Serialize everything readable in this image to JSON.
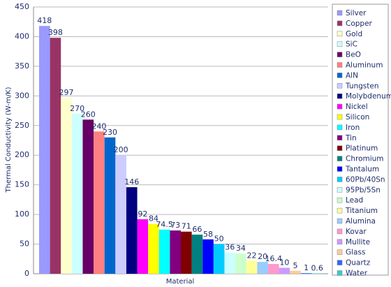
{
  "chart_data": {
    "type": "bar",
    "y_label": "Thermal Conductivity (W-m/K)",
    "x_label": "Material",
    "categories": [
      null
    ],
    "ylim": [
      0,
      450
    ],
    "yticks": [
      0,
      50,
      100,
      150,
      200,
      250,
      300,
      350,
      400,
      450
    ],
    "grid": true,
    "legend": "right",
    "series": [
      {
        "name": "Silver",
        "color": "#9999ff",
        "values": [
          418
        ]
      },
      {
        "name": "Copper",
        "color": "#993366",
        "values": [
          398
        ]
      },
      {
        "name": "Gold",
        "color": "#ffffcc",
        "values": [
          297
        ]
      },
      {
        "name": "SiC",
        "color": "#ccffff",
        "values": [
          270
        ]
      },
      {
        "name": "BeO",
        "color": "#660066",
        "values": [
          260
        ]
      },
      {
        "name": "Aluminum",
        "color": "#ff8080",
        "values": [
          240
        ]
      },
      {
        "name": "AlN",
        "color": "#0066cc",
        "values": [
          230
        ]
      },
      {
        "name": "Tungsten",
        "color": "#ccccff",
        "values": [
          200
        ]
      },
      {
        "name": "Molybdenum",
        "color": "#000080",
        "values": [
          146
        ]
      },
      {
        "name": "Nickel",
        "color": "#ff00ff",
        "values": [
          92
        ]
      },
      {
        "name": "Silicon",
        "color": "#ffff00",
        "values": [
          84
        ]
      },
      {
        "name": "Iron",
        "color": "#00ffff",
        "values": [
          74.5
        ]
      },
      {
        "name": "Tin",
        "color": "#800080",
        "values": [
          73
        ]
      },
      {
        "name": "Platinum",
        "color": "#800000",
        "values": [
          71
        ]
      },
      {
        "name": "Chromium",
        "color": "#008080",
        "values": [
          66
        ]
      },
      {
        "name": "Tantalum",
        "color": "#0000ff",
        "values": [
          58
        ]
      },
      {
        "name": "60Pb/40Sn",
        "color": "#00ccff",
        "values": [
          50
        ]
      },
      {
        "name": "95Pb/5Sn",
        "color": "#ccffff",
        "values": [
          36
        ]
      },
      {
        "name": "Lead",
        "color": "#ccffcc",
        "values": [
          34
        ]
      },
      {
        "name": "Titanium",
        "color": "#ffff99",
        "values": [
          22
        ]
      },
      {
        "name": "Alumina",
        "color": "#99ccff",
        "values": [
          20
        ]
      },
      {
        "name": "Kovar",
        "color": "#ff99cc",
        "values": [
          16.4
        ]
      },
      {
        "name": "Mullite",
        "color": "#cc99ff",
        "values": [
          10
        ]
      },
      {
        "name": "Glass",
        "color": "#ffcc99",
        "values": [
          5
        ]
      },
      {
        "name": "Quartz",
        "color": "#3366ff",
        "values": [
          1
        ]
      },
      {
        "name": "Water",
        "color": "#33cccc",
        "values": [
          0.6
        ]
      }
    ]
  }
}
